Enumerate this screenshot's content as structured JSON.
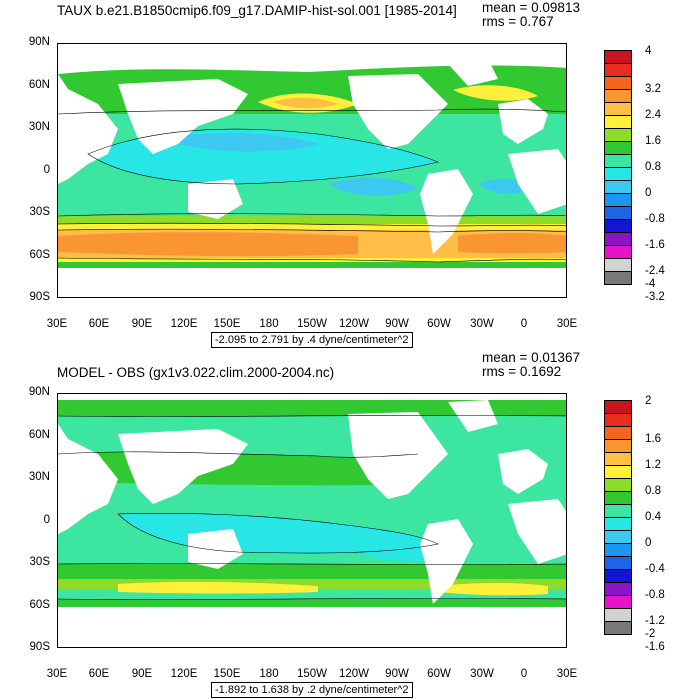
{
  "panels": [
    {
      "title": "TAUX b.e21.B1850cmip6.f09_g17.DAMIP-hist-sol.001 [1985-2014]",
      "mean": "mean = 0.09813",
      "rms": "rms = 0.767",
      "range_label": "-2.095 to 2.791 by .4 dyne/centimeter^2",
      "legend_labels": [
        "4",
        "3.2",
        "2.4",
        "1.6",
        "0.8",
        "0",
        "-0.8",
        "-1.6",
        "-2.4",
        "-3.2",
        "-4"
      ]
    },
    {
      "title": "MODEL - OBS (gx1v3.022.clim.2000-2004.nc)",
      "mean": "mean = 0.01367",
      "rms": "rms = 0.1692",
      "range_label": "-1.892 to 1.638 by .2 dyne/centimeter^2",
      "legend_labels": [
        "2",
        "1.6",
        "1.2",
        "0.8",
        "0.4",
        "0",
        "-0.4",
        "-0.8",
        "-1.2",
        "-1.6",
        "-2"
      ]
    }
  ],
  "lat_labels": [
    "90N",
    "60N",
    "30N",
    "0",
    "30S",
    "60S",
    "90S"
  ],
  "lon_labels": [
    "30E",
    "60E",
    "90E",
    "120E",
    "150E",
    "180",
    "150W",
    "120W",
    "90W",
    "60W",
    "30W",
    "0",
    "30E"
  ],
  "colors": {
    "legend_swatches": [
      "#c8141e",
      "#e62d1e",
      "#f5641e",
      "#fa9632",
      "#ffbe46",
      "#fff03c",
      "#8cdc28",
      "#32c832",
      "#3ce6a0",
      "#28e6e6",
      "#3cc8f0",
      "#1e96f0",
      "#1e64e6",
      "#1414d2",
      "#8c14c8",
      "#e614c8",
      "#d2d2d2",
      "#787878"
    ],
    "land": "#ffffff"
  }
}
